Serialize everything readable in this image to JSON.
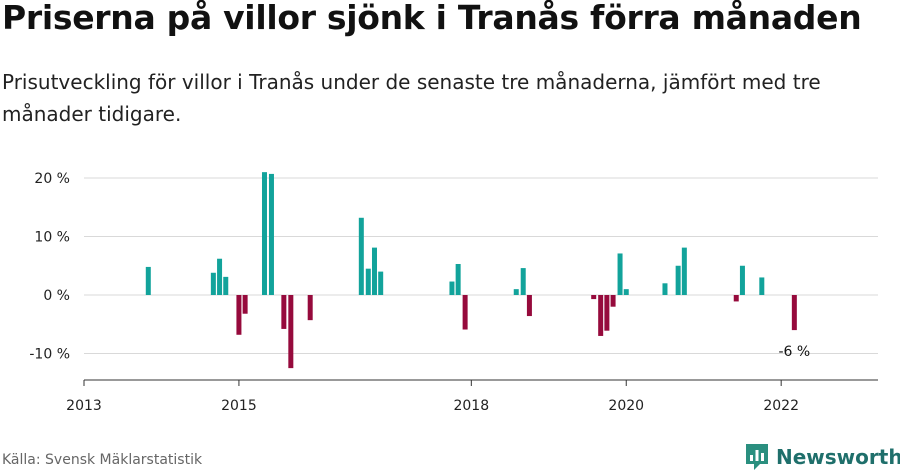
{
  "title": "Priserna på villor sjönk i Tranås förra månaden",
  "subtitle": "Prisutveckling för villor i Tranås under de senaste tre månaderna, jämfört med tre månader tidigare.",
  "source": "Källa: Svensk Mäklarstatistik",
  "brand": "Newsworthy",
  "colors": {
    "positive": "#12a39b",
    "negative": "#960a3c",
    "grid": "#d9d9d9",
    "brand": "#1f6f6b"
  },
  "chart_data": {
    "type": "bar",
    "title": "Priserna på villor sjönk i Tranås förra månaden",
    "ylabel": "",
    "xlabel": "",
    "ylim": [
      -15,
      20
    ],
    "yticks": [
      20,
      10,
      0,
      -10
    ],
    "ytick_labels": [
      "20 %",
      "10 %",
      "0 %",
      "-10 %"
    ],
    "xticks": [
      2013,
      2015,
      2018,
      2020,
      2022
    ],
    "xtick_labels": [
      "2013",
      "2015",
      "2018",
      "2020",
      "2022"
    ],
    "xlim": [
      2013,
      2023.25
    ],
    "series": [
      {
        "name": "Prisutveckling",
        "points": [
          {
            "x": 2013.83,
            "value": 4.8
          },
          {
            "x": 2014.67,
            "value": 3.8
          },
          {
            "x": 2014.75,
            "value": 6.2
          },
          {
            "x": 2014.83,
            "value": 3.1
          },
          {
            "x": 2015.0,
            "value": -6.8
          },
          {
            "x": 2015.08,
            "value": -3.2
          },
          {
            "x": 2015.33,
            "value": 21.0
          },
          {
            "x": 2015.42,
            "value": 20.7
          },
          {
            "x": 2015.58,
            "value": -5.8
          },
          {
            "x": 2015.67,
            "value": -12.5
          },
          {
            "x": 2015.92,
            "value": -4.3
          },
          {
            "x": 2016.58,
            "value": 13.2
          },
          {
            "x": 2016.67,
            "value": 4.5
          },
          {
            "x": 2016.75,
            "value": 8.1
          },
          {
            "x": 2016.83,
            "value": 4.0
          },
          {
            "x": 2017.75,
            "value": 2.3
          },
          {
            "x": 2017.83,
            "value": 5.3
          },
          {
            "x": 2017.92,
            "value": -5.9
          },
          {
            "x": 2018.58,
            "value": 1.0
          },
          {
            "x": 2018.67,
            "value": 4.6
          },
          {
            "x": 2018.75,
            "value": -3.6
          },
          {
            "x": 2019.58,
            "value": -0.7
          },
          {
            "x": 2019.67,
            "value": -7.0
          },
          {
            "x": 2019.75,
            "value": -6.1
          },
          {
            "x": 2019.83,
            "value": -2.0
          },
          {
            "x": 2019.92,
            "value": 7.1
          },
          {
            "x": 2020.0,
            "value": 1.0
          },
          {
            "x": 2020.5,
            "value": 2.0
          },
          {
            "x": 2020.67,
            "value": 5.0
          },
          {
            "x": 2020.75,
            "value": 8.1
          },
          {
            "x": 2021.42,
            "value": -1.1
          },
          {
            "x": 2021.5,
            "value": 5.0
          },
          {
            "x": 2021.75,
            "value": 3.0
          },
          {
            "x": 2022.17,
            "value": -6.0
          }
        ]
      }
    ],
    "annotations": [
      {
        "x": 2022.17,
        "value": -6.0,
        "text": "-6 %"
      }
    ]
  }
}
